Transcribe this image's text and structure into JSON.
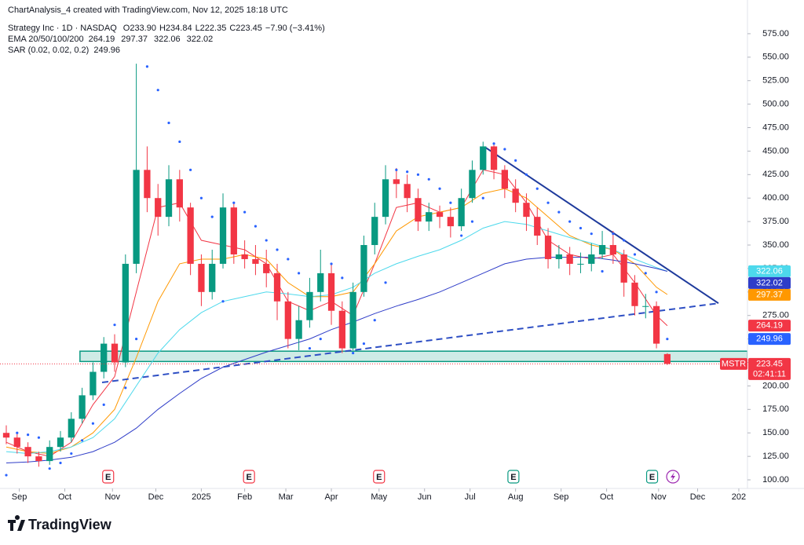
{
  "watermark": "ChartAnalysis_4 created with TradingView.com, Nov 12, 2025 18:18 UTC",
  "logo": "TradingView",
  "chart_data": {
    "type": "candlestick",
    "symbol": "Strategy Inc · 1D · NASDAQ",
    "ohlc_labels": [
      "O233.90",
      "H234.84",
      "L222.35",
      "C223.45",
      "−7.90 (−3.41%)"
    ],
    "ema_label": "EMA 20/50/100/200",
    "sar_label": "SAR (0.02, 0.02, 0.2)",
    "symbol_tag": "MSTR",
    "countdown": "02:41:11",
    "up_color": "#089981",
    "down_color": "#f23645",
    "xlim": [
      0,
      342
    ],
    "ylim": [
      92.5,
      597.5
    ],
    "grid": false,
    "xticks": [
      {
        "value": 6,
        "label": "Sep"
      },
      {
        "value": 27,
        "label": "Oct"
      },
      {
        "value": 49,
        "label": "Nov"
      },
      {
        "value": 69,
        "label": "Dec"
      },
      {
        "value": 90,
        "label": "2025"
      },
      {
        "value": 110,
        "label": "Feb"
      },
      {
        "value": 129,
        "label": "Mar"
      },
      {
        "value": 150,
        "label": "Apr"
      },
      {
        "value": 172,
        "label": "May"
      },
      {
        "value": 193,
        "label": "Jun"
      },
      {
        "value": 214,
        "label": "Jul"
      },
      {
        "value": 235,
        "label": "Aug"
      },
      {
        "value": 256,
        "label": "Sep"
      },
      {
        "value": 277,
        "label": "Oct"
      },
      {
        "value": 301,
        "label": "Nov"
      },
      {
        "value": 319,
        "label": "Dec"
      },
      {
        "value": 338,
        "label": "202"
      }
    ],
    "yticks": [
      {
        "value": 100,
        "label": "100.00"
      },
      {
        "value": 125,
        "label": "125.00"
      },
      {
        "value": 150,
        "label": "150.00"
      },
      {
        "value": 175,
        "label": "175.00"
      },
      {
        "value": 200,
        "label": "200.00"
      },
      {
        "value": 225,
        "label": "225.00"
      },
      {
        "value": 250,
        "label": "250.00"
      },
      {
        "value": 275,
        "label": "275.00"
      },
      {
        "value": 300,
        "label": "300.00"
      },
      {
        "value": 325,
        "label": "325.00"
      },
      {
        "value": 350,
        "label": "350.00"
      },
      {
        "value": 375,
        "label": "375.00"
      },
      {
        "value": 400,
        "label": "400.00"
      },
      {
        "value": 425,
        "label": "425.00"
      },
      {
        "value": 450,
        "label": "450.00"
      },
      {
        "value": 475,
        "label": "475.00"
      },
      {
        "value": 500,
        "label": "500.00"
      },
      {
        "value": 525,
        "label": "525.00"
      },
      {
        "value": 550,
        "label": "550.00"
      },
      {
        "value": 575,
        "label": "575.00"
      }
    ],
    "x": [
      0,
      5,
      10,
      15,
      20,
      25,
      30,
      35,
      40,
      45,
      50,
      55,
      60,
      65,
      70,
      75,
      80,
      85,
      90,
      95,
      100,
      105,
      110,
      115,
      120,
      125,
      130,
      135,
      140,
      145,
      150,
      155,
      160,
      165,
      170,
      175,
      180,
      185,
      190,
      195,
      200,
      205,
      210,
      215,
      220,
      225,
      230,
      235,
      240,
      245,
      250,
      255,
      260,
      265,
      270,
      275,
      280,
      285,
      290,
      295,
      300,
      305
    ],
    "open": [
      150,
      145,
      135,
      125,
      120,
      135,
      145,
      165,
      190,
      215,
      245,
      225,
      330,
      430,
      400,
      380,
      420,
      390,
      330,
      300,
      330,
      390,
      340,
      335,
      330,
      320,
      290,
      250,
      270,
      300,
      320,
      280,
      240,
      300,
      350,
      380,
      420,
      415,
      400,
      375,
      385,
      380,
      370,
      400,
      430,
      455,
      430,
      410,
      395,
      380,
      360,
      335,
      340,
      330,
      330,
      340,
      350,
      340,
      310,
      285,
      285,
      233.9
    ],
    "high": [
      158,
      150,
      140,
      130,
      142,
      152,
      172,
      198,
      225,
      252,
      255,
      340,
      543,
      455,
      415,
      435,
      430,
      395,
      340,
      345,
      405,
      395,
      355,
      350,
      345,
      330,
      300,
      285,
      315,
      345,
      330,
      290,
      310,
      360,
      395,
      435,
      432,
      425,
      410,
      395,
      392,
      390,
      410,
      440,
      460,
      458,
      435,
      420,
      405,
      390,
      368,
      350,
      348,
      342,
      352,
      365,
      365,
      345,
      318,
      298,
      290,
      234.84
    ],
    "low": [
      138,
      128,
      118,
      114,
      116,
      130,
      140,
      160,
      185,
      208,
      215,
      220,
      320,
      385,
      360,
      370,
      375,
      318,
      285,
      292,
      325,
      330,
      325,
      318,
      305,
      270,
      240,
      238,
      262,
      290,
      265,
      235,
      238,
      295,
      340,
      372,
      400,
      385,
      365,
      365,
      368,
      358,
      365,
      395,
      425,
      420,
      400,
      385,
      365,
      350,
      325,
      325,
      318,
      320,
      322,
      335,
      330,
      295,
      275,
      272,
      240,
      222.35
    ],
    "close": [
      145,
      135,
      125,
      120,
      135,
      145,
      165,
      190,
      215,
      245,
      225,
      330,
      430,
      400,
      380,
      420,
      390,
      330,
      300,
      330,
      390,
      340,
      335,
      330,
      320,
      290,
      250,
      270,
      300,
      320,
      280,
      240,
      300,
      350,
      380,
      420,
      415,
      400,
      375,
      385,
      380,
      370,
      400,
      430,
      455,
      430,
      410,
      395,
      380,
      360,
      335,
      340,
      330,
      330,
      340,
      350,
      340,
      310,
      285,
      285,
      245,
      223.45
    ],
    "ema_x": [
      0,
      10,
      20,
      30,
      40,
      50,
      60,
      70,
      80,
      90,
      100,
      110,
      120,
      130,
      140,
      150,
      160,
      170,
      180,
      190,
      200,
      210,
      220,
      230,
      240,
      250,
      260,
      270,
      280,
      290,
      300,
      305
    ],
    "ema": [
      {
        "color": "#f23645",
        "values": [
          140,
          130,
          125,
          140,
          180,
          210,
          300,
          390,
          395,
          355,
          350,
          345,
          330,
          290,
          280,
          290,
          275,
          330,
          390,
          395,
          385,
          390,
          430,
          425,
          395,
          355,
          340,
          335,
          340,
          310,
          275,
          264.19
        ]
      },
      {
        "color": "#ff9800",
        "values": [
          135,
          130,
          128,
          135,
          150,
          175,
          230,
          290,
          330,
          335,
          335,
          340,
          335,
          310,
          295,
          295,
          300,
          330,
          365,
          380,
          385,
          390,
          405,
          410,
          400,
          380,
          360,
          350,
          345,
          330,
          305,
          297.37
        ]
      },
      {
        "color": "#4dd9ec",
        "values": [
          130,
          128,
          130,
          135,
          145,
          165,
          200,
          235,
          260,
          278,
          290,
          295,
          300,
          298,
          295,
          297,
          305,
          320,
          330,
          338,
          345,
          355,
          368,
          375,
          372,
          365,
          358,
          352,
          345,
          335,
          326,
          322.06
        ]
      },
      {
        "color": "#2f3dc8",
        "values": [
          118,
          119,
          121,
          124,
          130,
          140,
          155,
          175,
          192,
          208,
          220,
          228,
          236,
          243,
          250,
          260,
          268,
          277,
          285,
          292,
          300,
          310,
          320,
          330,
          335,
          337,
          337,
          337,
          334,
          330,
          325,
          322.02
        ]
      }
    ],
    "sar": {
      "color": "#2962ff",
      "values": [
        105,
        150,
        148,
        145,
        112,
        118,
        128,
        142,
        160,
        180,
        265,
        198,
        250,
        540,
        515,
        480,
        460,
        430,
        400,
        380,
        290,
        395,
        385,
        370,
        355,
        345,
        335,
        320,
        240,
        250,
        330,
        315,
        235,
        245,
        270,
        310,
        430,
        428,
        425,
        420,
        410,
        395,
        360,
        375,
        400,
        458,
        452,
        440,
        425,
        410,
        395,
        385,
        375,
        368,
        362,
        322,
        362,
        355,
        340,
        320,
        300,
        249.96
      ]
    },
    "zone": {
      "x": [
        34,
        342
      ],
      "y": [
        226,
        237
      ],
      "color": "#089981"
    },
    "trendlines": [
      {
        "points": [
          [
            220.7,
            454.5
          ],
          [
            328.6,
            288
          ]
        ],
        "color": "#1e3a9c",
        "style": "solid"
      },
      {
        "points": [
          [
            44.2,
            203.7
          ],
          [
            328.6,
            288
          ]
        ],
        "color": "#2e4fc4",
        "style": "dashed"
      }
    ],
    "events": [
      {
        "x": 47,
        "label": "E",
        "color": "#f23645"
      },
      {
        "x": 112,
        "label": "E",
        "color": "#f23645"
      },
      {
        "x": 172,
        "label": "E",
        "color": "#f23645"
      },
      {
        "x": 234,
        "label": "E",
        "color": "#089981"
      },
      {
        "x": 298,
        "label": "E",
        "color": "#089981"
      },
      {
        "x": 307.6,
        "color": "#9c27b0"
      }
    ]
  }
}
